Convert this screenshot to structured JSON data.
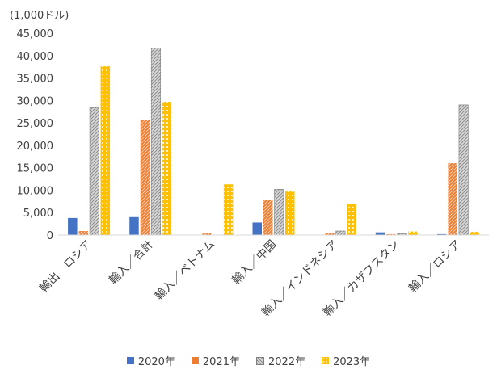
{
  "chart_data": {
    "type": "bar",
    "unit_label": "(1,000ドル)",
    "categories": [
      "輸出／ロシア",
      "輸入／合計",
      "輸入／ベトナム",
      "輸入／中国",
      "輸入／インドネシア",
      "輸入／カザフスタン",
      "輸入／ロシア"
    ],
    "series": [
      {
        "name": "2020年",
        "color": "#4472C4",
        "pattern": "solid",
        "values": [
          3800,
          4000,
          0,
          2800,
          0,
          600,
          200
        ]
      },
      {
        "name": "2021年",
        "color": "#ED7D31",
        "pattern": "diag",
        "values": [
          900,
          25600,
          500,
          7800,
          400,
          200,
          16000
        ]
      },
      {
        "name": "2022年",
        "color": "#A5A5A5",
        "pattern": "stripe",
        "values": [
          28400,
          41700,
          0,
          10200,
          900,
          300,
          29000
        ]
      },
      {
        "name": "2023年",
        "color": "#FFC000",
        "pattern": "dots",
        "values": [
          37600,
          29700,
          11300,
          9700,
          6900,
          800,
          700
        ]
      }
    ],
    "ylim": [
      0,
      45000
    ],
    "yticks": [
      "0",
      "5,000",
      "10,000",
      "15,000",
      "20,000",
      "25,000",
      "30,000",
      "35,000",
      "40,000",
      "45,000"
    ],
    "grid": false,
    "legend_position": "bottom"
  }
}
